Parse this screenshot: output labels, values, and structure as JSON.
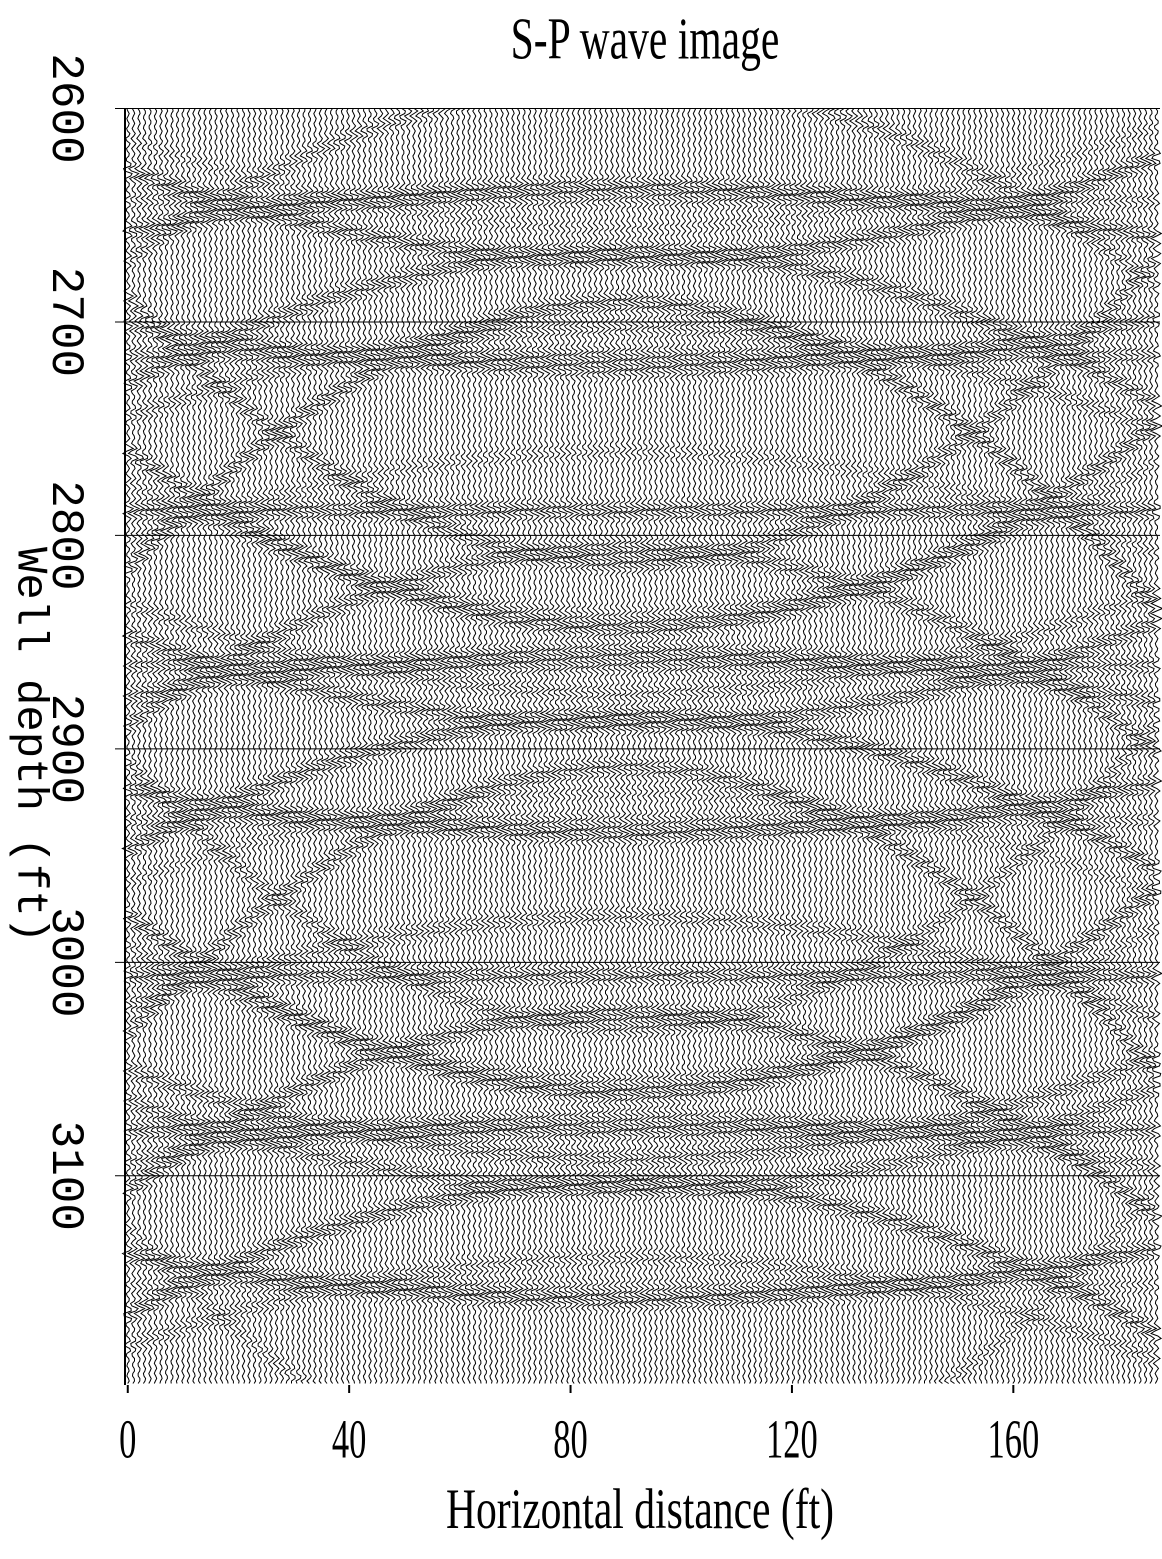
{
  "chart_data": {
    "type": "wiggle",
    "title": "S-P wave image",
    "xlabel": "Horizontal distance (ft)",
    "ylabel": "Well depth (ft)",
    "xlim": [
      -0.5,
      186.5
    ],
    "xticks": [
      0,
      40,
      80,
      120,
      160
    ],
    "ylim": [
      2600,
      3198
    ],
    "yticks": [
      2600,
      2700,
      2800,
      2900,
      3000,
      3100
    ],
    "y_inverted": true,
    "grid": true,
    "color": "#000000"
  }
}
